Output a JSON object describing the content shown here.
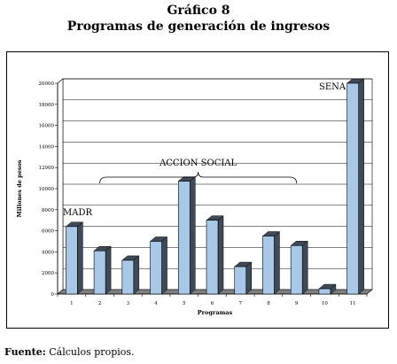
{
  "header": {
    "figure_label": "Gráfico 8",
    "title": "Programas de generación de ingresos"
  },
  "source": {
    "label": "Fuente:",
    "text": "Cálculos propios."
  },
  "chart_data": {
    "type": "bar",
    "categories": [
      "1",
      "2",
      "3",
      "4",
      "5",
      "6",
      "7",
      "8",
      "9",
      "10",
      "11"
    ],
    "values": [
      6400,
      4100,
      3200,
      5000,
      10700,
      7000,
      2600,
      5500,
      4600,
      500,
      20000
    ],
    "xlabel": "Programas",
    "ylabel": "Millones de pesos",
    "ylim": [
      0,
      20000
    ],
    "yticks": [
      0,
      2000,
      4000,
      6000,
      8000,
      10000,
      12000,
      14000,
      16000,
      18000,
      20000
    ],
    "grid": true,
    "bar_color": "#a9c8e8",
    "bar_side_color": "#3f4a58",
    "annotations": [
      {
        "text": "MADR",
        "category": "1"
      },
      {
        "text": "ACCION SOCIAL",
        "from_category": "2",
        "to_category": "9"
      },
      {
        "text": "SENA",
        "category": "11"
      }
    ]
  }
}
